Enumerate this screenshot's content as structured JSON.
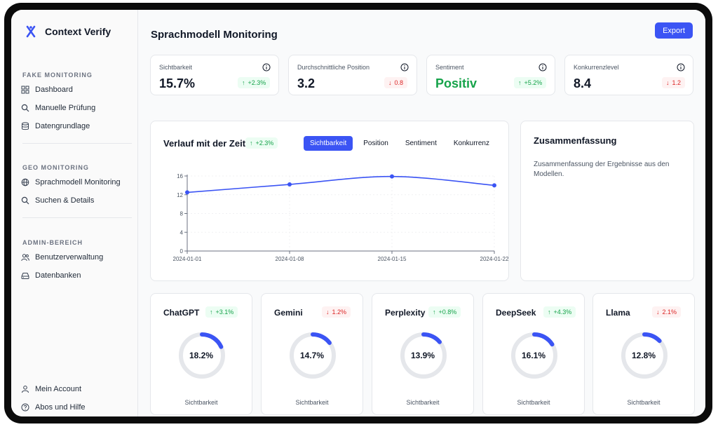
{
  "app": {
    "name": "Context Verify"
  },
  "sidebar": {
    "sections": [
      {
        "title": "FAKE MONITORING",
        "items": [
          {
            "label": "Dashboard",
            "icon": "grid-icon"
          },
          {
            "label": "Manuelle Prüfung",
            "icon": "search-icon"
          },
          {
            "label": "Datengrundlage",
            "icon": "database-icon"
          }
        ]
      },
      {
        "title": "GEO MONITORING",
        "items": [
          {
            "label": "Sprachmodell Monitoring",
            "icon": "globe-icon"
          },
          {
            "label": "Suchen & Details",
            "icon": "search-icon"
          }
        ]
      },
      {
        "title": "ADMIN-BEREICH",
        "items": [
          {
            "label": "Benutzerverwaltung",
            "icon": "users-icon"
          },
          {
            "label": "Datenbanken",
            "icon": "drive-icon"
          }
        ]
      }
    ],
    "footer": [
      {
        "label": "Mein Account",
        "icon": "user-icon"
      },
      {
        "label": "Abos und Hilfe",
        "icon": "help-icon"
      }
    ]
  },
  "header": {
    "title": "Sprachmodell Monitoring",
    "export_label": "Export"
  },
  "kpis": [
    {
      "label": "Sichtbarkeit",
      "value": "15.7%",
      "change": "+2.3%",
      "trend": "up"
    },
    {
      "label": "Durchschnittliche Position",
      "value": "3.2",
      "change": "0.8",
      "trend": "down"
    },
    {
      "label": "Sentiment",
      "value": "Positiv",
      "change": "+5.2%",
      "trend": "up"
    },
    {
      "label": "Konkurrenzlevel",
      "value": "8.4",
      "change": "1.2",
      "trend": "down"
    }
  ],
  "chart_panel": {
    "title": "Verlauf mit der Zeit",
    "change": "+2.3%",
    "tabs": [
      "Sichtbarkeit",
      "Position",
      "Sentiment",
      "Konkurrenz"
    ],
    "active_tab": "Sichtbarkeit"
  },
  "chart_data": {
    "type": "line",
    "x": [
      "2024-01-01",
      "2024-01-08",
      "2024-01-15",
      "2024-01-22"
    ],
    "series": [
      {
        "values": [
          12.5,
          14.2,
          15.9,
          14.0
        ]
      }
    ],
    "yticks": [
      0,
      4,
      8,
      12,
      16
    ],
    "ylim": [
      0,
      16
    ],
    "color": "#3b54f4",
    "grid": true
  },
  "summary": {
    "title": "Zusammenfassung",
    "text": "Zusammenfassung der Ergebnisse aus den Modellen."
  },
  "models": [
    {
      "name": "ChatGPT",
      "change": "+3.1%",
      "trend": "up",
      "value": "18.2%",
      "fraction": 0.182,
      "metric": "Sichtbarkeit"
    },
    {
      "name": "Gemini",
      "change": "1.2%",
      "trend": "down",
      "value": "14.7%",
      "fraction": 0.147,
      "metric": "Sichtbarkeit"
    },
    {
      "name": "Perplexity",
      "change": "+0.8%",
      "trend": "up",
      "value": "13.9%",
      "fraction": 0.139,
      "metric": "Sichtbarkeit"
    },
    {
      "name": "DeepSeek",
      "change": "+4.3%",
      "trend": "up",
      "value": "16.1%",
      "fraction": 0.161,
      "metric": "Sichtbarkeit"
    },
    {
      "name": "Llama",
      "change": "2.1%",
      "trend": "down",
      "value": "12.8%",
      "fraction": 0.128,
      "metric": "Sichtbarkeit"
    }
  ],
  "colors": {
    "accent": "#3b54f4",
    "positive": "#16a34a",
    "negative": "#dc2626",
    "ring_bg": "#e5e7eb"
  }
}
